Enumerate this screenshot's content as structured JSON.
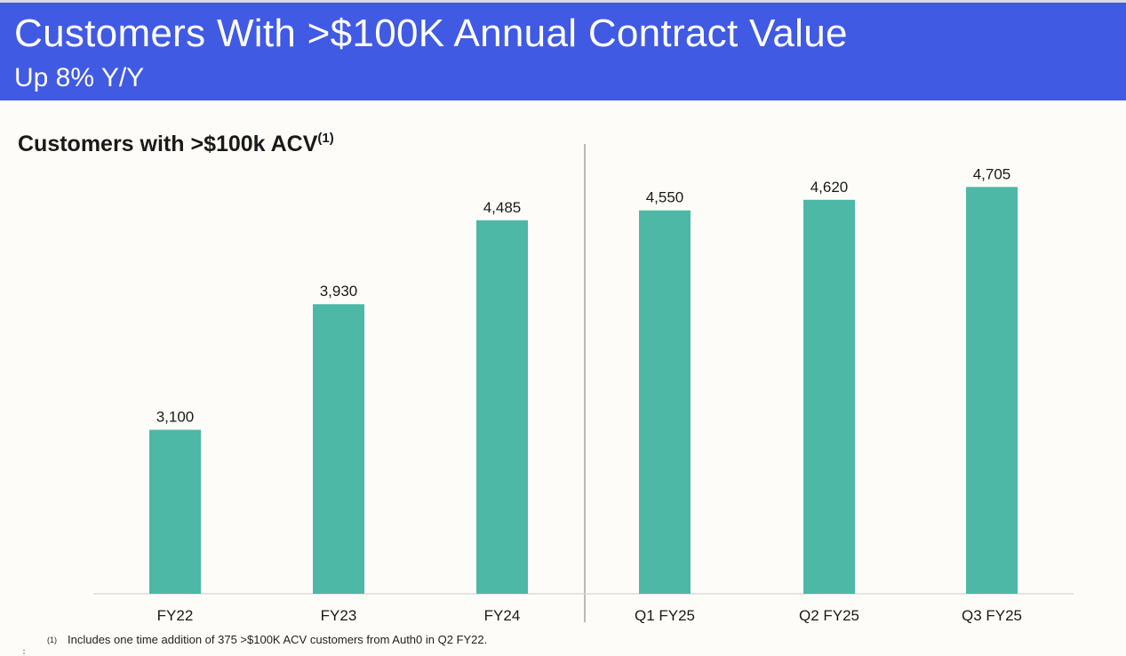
{
  "header": {
    "title": "Customers With >$100K Annual Contract Value",
    "subtitle": "Up 8% Y/Y"
  },
  "chart_heading": {
    "text": "Customers with >$100k ACV",
    "superscript": "(1)"
  },
  "colors": {
    "header_bg": "#405ae3",
    "bar": "#4db8a6",
    "background": "#fdfcf8"
  },
  "chart_data": {
    "type": "bar",
    "title": "Customers with >$100k ACV",
    "categories": [
      "FY22",
      "FY23",
      "FY24",
      "Q1 FY25",
      "Q2 FY25",
      "Q3 FY25"
    ],
    "values": [
      3100,
      3930,
      4485,
      4550,
      4620,
      4705
    ],
    "value_labels": [
      "3,100",
      "3,930",
      "4,485",
      "4,550",
      "4,620",
      "4,705"
    ],
    "xlabel": "",
    "ylabel": "",
    "grid": false,
    "separator_after_index": 2
  },
  "footnote": {
    "marker": "(1)",
    "text": "Includes one time addition of 375 >$100K ACV customers from Auth0 in Q2 FY22."
  }
}
